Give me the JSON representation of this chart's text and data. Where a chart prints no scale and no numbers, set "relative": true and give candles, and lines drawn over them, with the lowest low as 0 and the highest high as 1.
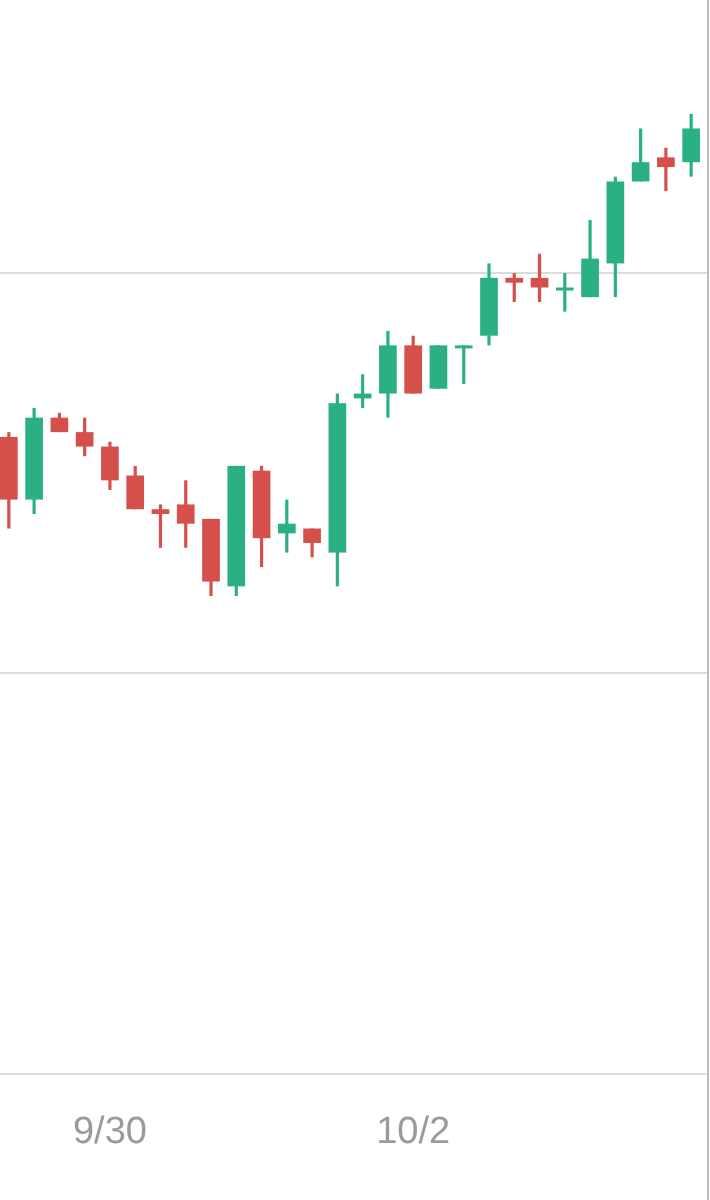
{
  "chart_data": {
    "type": "candlestick",
    "relative": true,
    "ref_lines": [
      {
        "axis": "y",
        "value": 0.67,
        "color": "#dcdcdc"
      },
      {
        "axis": "y",
        "value": -0.16,
        "color": "#dcdcdc"
      }
    ],
    "categories": [
      null,
      null,
      null,
      null,
      "9/30",
      null,
      null,
      null,
      null,
      null,
      null,
      null,
      null,
      null,
      null,
      null,
      "10/2",
      null,
      null,
      null,
      null,
      null,
      null,
      null,
      null,
      null,
      null,
      null
    ],
    "ohlc": [
      [
        0.33,
        0.34,
        0.14,
        0.2
      ],
      [
        0.2,
        0.39,
        0.17,
        0.37
      ],
      [
        0.37,
        0.38,
        0.34,
        0.34
      ],
      [
        0.34,
        0.37,
        0.29,
        0.31
      ],
      [
        0.31,
        0.32,
        0.22,
        0.24
      ],
      [
        0.25,
        0.27,
        0.18,
        0.18
      ],
      [
        0.18,
        0.19,
        0.1,
        0.17
      ],
      [
        0.19,
        0.24,
        0.1,
        0.15
      ],
      [
        0.16,
        0.16,
        0,
        0.03
      ],
      [
        0.02,
        0.27,
        0,
        0.27
      ],
      [
        0.26,
        0.27,
        0.06,
        0.12
      ],
      [
        0.13,
        0.2,
        0.09,
        0.15
      ],
      [
        0.14,
        0.14,
        0.08,
        0.11
      ],
      [
        0.09,
        0.42,
        0.02,
        0.4
      ],
      [
        0.41,
        0.46,
        0.39,
        0.42
      ],
      [
        0.42,
        0.55,
        0.37,
        0.52
      ],
      [
        0.52,
        0.54,
        0.42,
        0.42
      ],
      [
        0.43,
        0.52,
        0.43,
        0.52
      ],
      [
        0.52,
        0.52,
        0.44,
        0.52
      ],
      [
        0.54,
        0.69,
        0.52,
        0.66
      ],
      [
        0.66,
        0.67,
        0.61,
        0.65
      ],
      [
        0.66,
        0.71,
        0.61,
        0.64
      ],
      [
        0.64,
        0.67,
        0.59,
        0.64
      ],
      [
        0.62,
        0.78,
        0.62,
        0.7
      ],
      [
        0.69,
        0.87,
        0.62,
        0.86
      ],
      [
        0.86,
        0.97,
        0.86,
        0.9
      ],
      [
        0.91,
        0.93,
        0.84,
        0.89
      ],
      [
        0.9,
        1,
        0.87,
        0.97
      ]
    ],
    "colors": [
      "#d5504a",
      "#2bb083",
      "#d5504a",
      "#d5504a",
      "#d5504a",
      "#d5504a",
      "#d5504a",
      "#d5504a",
      "#d5504a",
      "#2bb083",
      "#d5504a",
      "#2bb083",
      "#d5504a",
      "#2bb083",
      "#2bb083",
      "#2bb083",
      "#d5504a",
      "#2bb083",
      "#2bb083",
      "#2bb083",
      "#d5504a",
      "#d5504a",
      "#2bb083",
      "#2bb083",
      "#2bb083",
      "#2bb083",
      "#d5504a",
      "#2bb083"
    ]
  }
}
